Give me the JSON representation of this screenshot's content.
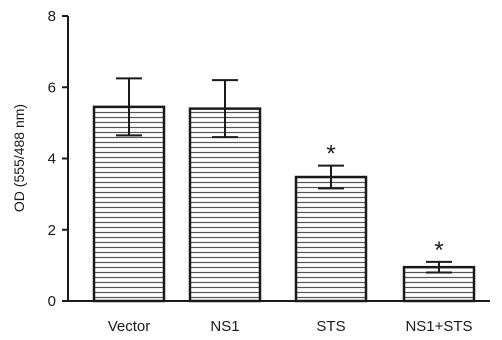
{
  "chart_data": {
    "type": "bar",
    "title": "",
    "xlabel": "",
    "ylabel": "OD (555/488 nm)",
    "ylim": [
      0,
      8
    ],
    "yticks": [
      0,
      2,
      4,
      6,
      8
    ],
    "categories": [
      "Vector",
      "NS1",
      "STS",
      "NS1+STS"
    ],
    "values": [
      5.45,
      5.4,
      3.48,
      0.95
    ],
    "errors": [
      0.8,
      0.8,
      0.32,
      0.15
    ],
    "significance": [
      "",
      "",
      "*",
      "*"
    ],
    "bar_fill": "horizontal-stripes",
    "colors": {
      "stroke": "#1a1a1a",
      "fill": "#ffffff",
      "stripe": "#555555"
    }
  }
}
